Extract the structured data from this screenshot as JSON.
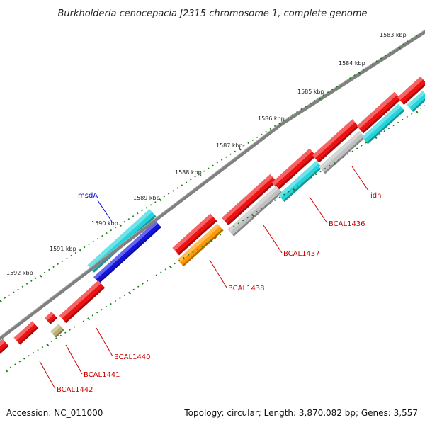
{
  "map": {
    "title": "Burkholderia cenocepacia J2315 chromosome 1, complete genome",
    "accession": "Accession: NC_011000",
    "summary": "Topology: circular; Length: 3,870,082 bp; Genes: 3,557"
  },
  "ticks": [
    "1583 kbp",
    "1584 kbp",
    "1585 kbp",
    "1586 kbp",
    "1587 kbp",
    "1588 kbp",
    "1589 kbp",
    "1590 kbp",
    "1591 kbp",
    "1592 kbp"
  ],
  "gene_labels": [
    {
      "text": "msdA",
      "color": "#0000cc"
    },
    {
      "text": "idh",
      "color": "#cc0000"
    },
    {
      "text": "BCAL1436",
      "color": "#cc0000"
    },
    {
      "text": "BCAL1437",
      "color": "#cc0000"
    },
    {
      "text": "BCAL1438",
      "color": "#cc0000"
    },
    {
      "text": "BCAL1440",
      "color": "#cc0000"
    },
    {
      "text": "BCAL1441",
      "color": "#cc0000"
    },
    {
      "text": "BCAL1442",
      "color": "#cc0000"
    }
  ],
  "colors": {
    "backbone": "#808080",
    "tick": "#1a7a1a",
    "gene_red": "#ee1111",
    "gene_cyan": "#22d4dc",
    "gene_blue": "#1414dd",
    "gene_gray": "#c0c0c0",
    "gene_orange": "#ff9900",
    "gene_olive": "#b8b070"
  }
}
